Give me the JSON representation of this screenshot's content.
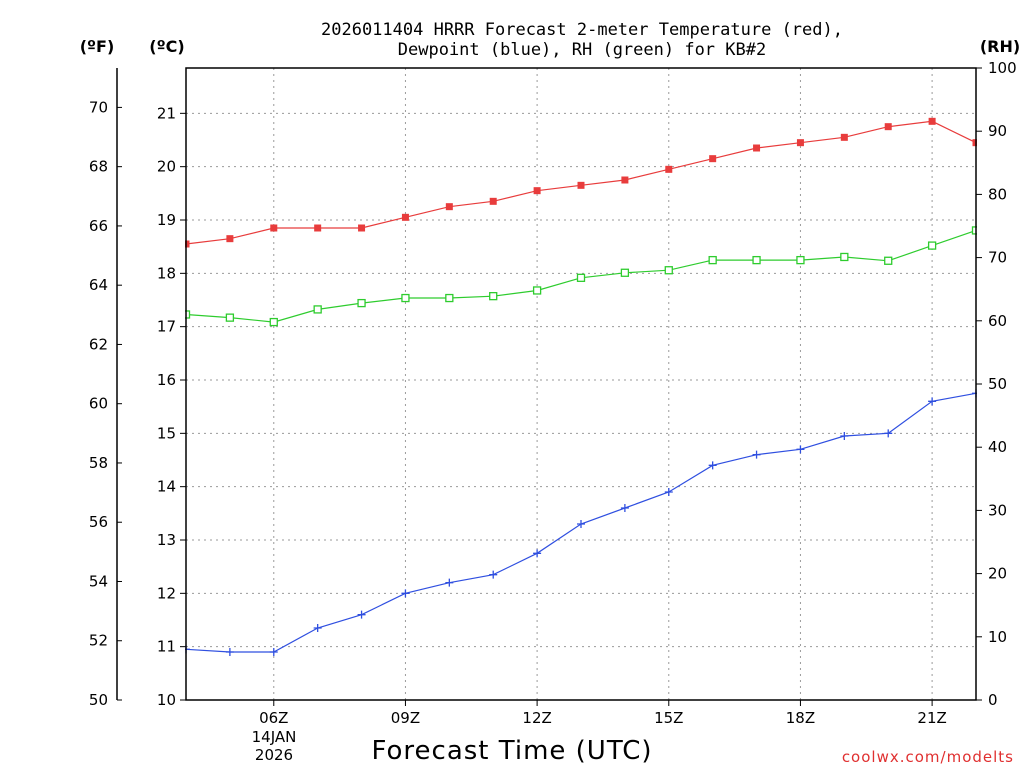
{
  "chart_data": {
    "type": "line",
    "title_line1": "2026011404 HRRR Forecast 2-meter Temperature (red),",
    "title_line2": "Dewpoint (blue), RH (green) for KB#2",
    "units": {
      "fahrenheit": "(ºF)",
      "celsius": "(ºC)",
      "rh": "(RH)"
    },
    "xlabel": "Forecast Time (UTC)",
    "credit": "coolwx.com/modelts",
    "date_labels": {
      "day": "14JAN",
      "year": "2026"
    },
    "x_ticks": [
      {
        "hour": 6,
        "label": "06Z"
      },
      {
        "hour": 9,
        "label": "09Z"
      },
      {
        "hour": 12,
        "label": "12Z"
      },
      {
        "hour": 15,
        "label": "15Z"
      },
      {
        "hour": 18,
        "label": "18Z"
      },
      {
        "hour": 21,
        "label": "21Z"
      }
    ],
    "x_range": [
      4,
      22
    ],
    "celsius_ticks": [
      "10",
      "11",
      "12",
      "13",
      "14",
      "15",
      "16",
      "17",
      "18",
      "19",
      "20",
      "21"
    ],
    "celsius_range": [
      10,
      21.85
    ],
    "fahrenheit_ticks": [
      "50",
      "52",
      "54",
      "56",
      "58",
      "60",
      "62",
      "64",
      "66",
      "68",
      "70"
    ],
    "rh_ticks": [
      "0",
      "10",
      "20",
      "30",
      "40",
      "50",
      "60",
      "70",
      "80",
      "90",
      "100"
    ],
    "rh_range": [
      0,
      100
    ],
    "x": [
      4,
      5,
      6,
      7,
      8,
      9,
      10,
      11,
      12,
      13,
      14,
      15,
      16,
      17,
      18,
      19,
      20,
      21,
      22
    ],
    "series": [
      {
        "name": "Temperature",
        "unit": "C",
        "color": "#e83c3c",
        "marker": "filled-square",
        "values": [
          18.55,
          18.65,
          18.85,
          18.85,
          18.85,
          19.05,
          19.25,
          19.35,
          19.55,
          19.65,
          19.75,
          19.95,
          20.15,
          20.35,
          20.45,
          20.55,
          20.75,
          20.85,
          20.45
        ]
      },
      {
        "name": "Dewpoint",
        "unit": "C",
        "color": "#2f4fe0",
        "marker": "plus",
        "values": [
          10.95,
          10.9,
          10.9,
          11.35,
          11.6,
          12.0,
          12.2,
          12.35,
          12.75,
          13.3,
          13.6,
          13.9,
          14.4,
          14.6,
          14.7,
          14.95,
          15.0,
          15.6,
          15.75
        ]
      },
      {
        "name": "RH",
        "unit": "%",
        "color": "#2ecc2e",
        "marker": "open-square",
        "values": [
          61,
          60.5,
          59.8,
          61.8,
          62.8,
          63.6,
          63.6,
          63.9,
          64.8,
          66.8,
          67.6,
          68.0,
          69.6,
          69.6,
          69.6,
          70.1,
          69.5,
          71.9,
          74.3
        ]
      }
    ]
  }
}
